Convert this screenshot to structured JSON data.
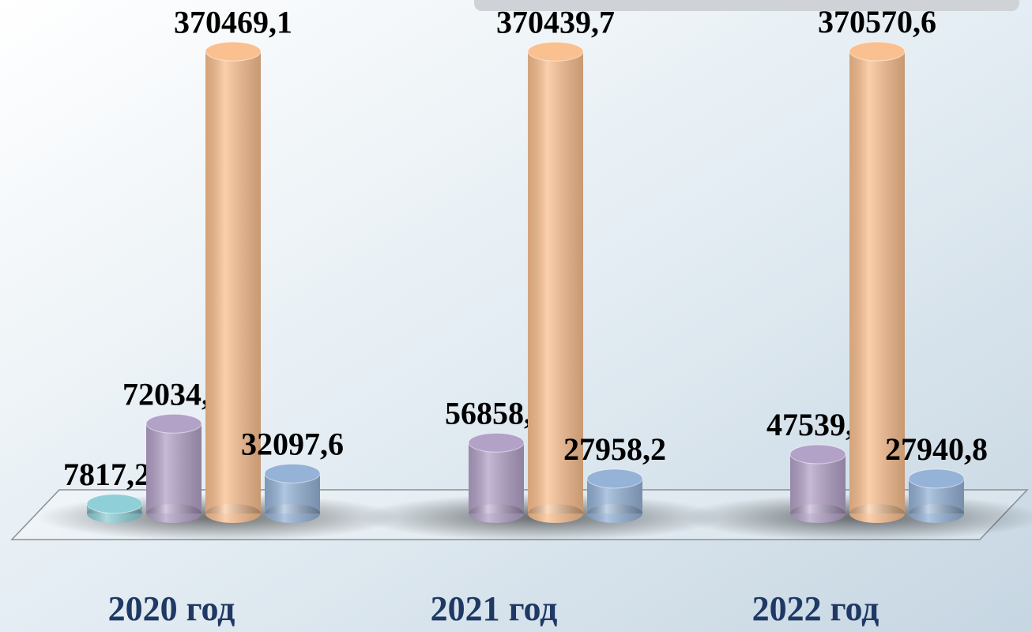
{
  "chart_data": {
    "type": "bar3d",
    "categories": [
      "2020 год",
      "2021 год",
      "2022 год"
    ],
    "series": [
      {
        "color": "#8fd0d8",
        "values": [
          7817.2,
          null,
          null
        ],
        "value_labels": [
          "7817,2",
          null,
          null
        ]
      },
      {
        "color": "#b3a2c7",
        "values": [
          72034.1,
          56858.2,
          47539.9
        ],
        "value_labels": [
          "72034,1",
          "56858,2",
          "47539,9"
        ]
      },
      {
        "color": "#fac090",
        "values": [
          370469.1,
          370439.7,
          370570.6
        ],
        "value_labels": [
          "370469,1",
          "370439,7",
          "370570,6"
        ]
      },
      {
        "color": "#95b3d7",
        "values": [
          32097.6,
          27958.2,
          27940.8
        ],
        "value_labels": [
          "32097,6",
          "27958,2",
          "27940,8"
        ]
      }
    ]
  }
}
